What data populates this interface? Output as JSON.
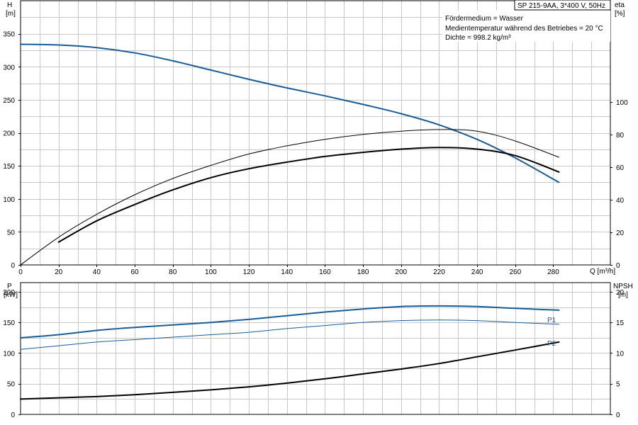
{
  "chart_data": [
    {
      "type": "line",
      "title": "SP 215-9AA, 3*400 V, 50Hz",
      "notes": [
        "Fördermedium = Wasser",
        "Medientemperatur während des Betriebes = 20 °C",
        "Dichte = 998.2 kg/m³"
      ],
      "xlabel": "Q [m³/h]",
      "ylabel_left": [
        "H",
        "[m]"
      ],
      "ylabel_right": [
        "eta",
        "[%]"
      ],
      "xlim": [
        0,
        310
      ],
      "ylim_left": [
        0,
        400
      ],
      "ylim_right": [
        0,
        162
      ],
      "x_ticks": [
        "0",
        "20",
        "40",
        "60",
        "80",
        "100",
        "120",
        "140",
        "160",
        "180",
        "200",
        "220",
        "240",
        "260",
        "280"
      ],
      "y_ticks_left": [
        "0",
        "50",
        "100",
        "150",
        "200",
        "250",
        "300",
        "350"
      ],
      "y_ticks_right": [
        "0",
        "20",
        "40",
        "60",
        "80",
        "100"
      ],
      "grid": true,
      "series": [
        {
          "key": "H",
          "axis": "left",
          "color": "#1a5c96",
          "width": 2,
          "x": [
            0,
            20,
            40,
            60,
            80,
            100,
            120,
            140,
            160,
            180,
            200,
            220,
            240,
            260,
            283
          ],
          "y": [
            334,
            333,
            329,
            321,
            309,
            295,
            281,
            268,
            256,
            243,
            229,
            212,
            190,
            162,
            125
          ]
        },
        {
          "key": "eta_thin",
          "axis": "right",
          "color": "#000000",
          "width": 1,
          "x": [
            0,
            20,
            40,
            60,
            80,
            100,
            120,
            140,
            160,
            180,
            200,
            220,
            240,
            260,
            283
          ],
          "y": [
            0,
            17,
            31,
            43,
            53,
            61,
            68,
            73,
            77,
            80,
            82,
            83,
            82,
            76,
            66
          ]
        },
        {
          "key": "eta_thick",
          "axis": "right",
          "color": "#000000",
          "width": 2,
          "x": [
            20,
            40,
            60,
            80,
            100,
            120,
            140,
            160,
            180,
            200,
            220,
            240,
            260,
            283
          ],
          "y": [
            14,
            27,
            37,
            46,
            53.5,
            59,
            63,
            66.5,
            69,
            71,
            72,
            71,
            67,
            57
          ]
        }
      ]
    },
    {
      "type": "line",
      "xlabel": "",
      "ylabel_left": [
        "P",
        "[kW]"
      ],
      "ylabel_right": [
        "NPSH",
        "[m]"
      ],
      "xlim": [
        0,
        310
      ],
      "ylim_left": [
        0,
        215
      ],
      "ylim_right": [
        0,
        21.5
      ],
      "y_ticks_left": [
        "0",
        "50",
        "100",
        "150",
        "200"
      ],
      "y_ticks_right": [
        "0",
        "5",
        "10",
        "15",
        "20"
      ],
      "grid": true,
      "series": [
        {
          "name": "P1",
          "axis": "left",
          "color": "#1a5c96",
          "width": 2,
          "x": [
            0,
            20,
            40,
            60,
            80,
            100,
            120,
            140,
            160,
            180,
            200,
            220,
            240,
            260,
            283
          ],
          "y": [
            125,
            130,
            137,
            142,
            146,
            150,
            155,
            161,
            167,
            172,
            176,
            177,
            176,
            173,
            170
          ]
        },
        {
          "name": "P2",
          "axis": "left",
          "color": "#1a5c96",
          "width": 1,
          "x": [
            0,
            20,
            40,
            60,
            80,
            100,
            120,
            140,
            160,
            180,
            200,
            220,
            240,
            260,
            283
          ],
          "y": [
            106,
            112,
            118,
            122,
            126,
            130,
            134,
            140,
            145,
            150,
            153,
            154,
            153,
            150,
            147
          ]
        },
        {
          "key": "NPSH",
          "axis": "right",
          "color": "#000000",
          "width": 2,
          "x": [
            0,
            20,
            40,
            60,
            80,
            100,
            120,
            140,
            160,
            180,
            200,
            220,
            240,
            260,
            283
          ],
          "y": [
            2.5,
            2.7,
            2.9,
            3.2,
            3.6,
            4.0,
            4.5,
            5.1,
            5.8,
            6.6,
            7.4,
            8.3,
            9.4,
            10.5,
            11.8
          ]
        }
      ]
    }
  ]
}
